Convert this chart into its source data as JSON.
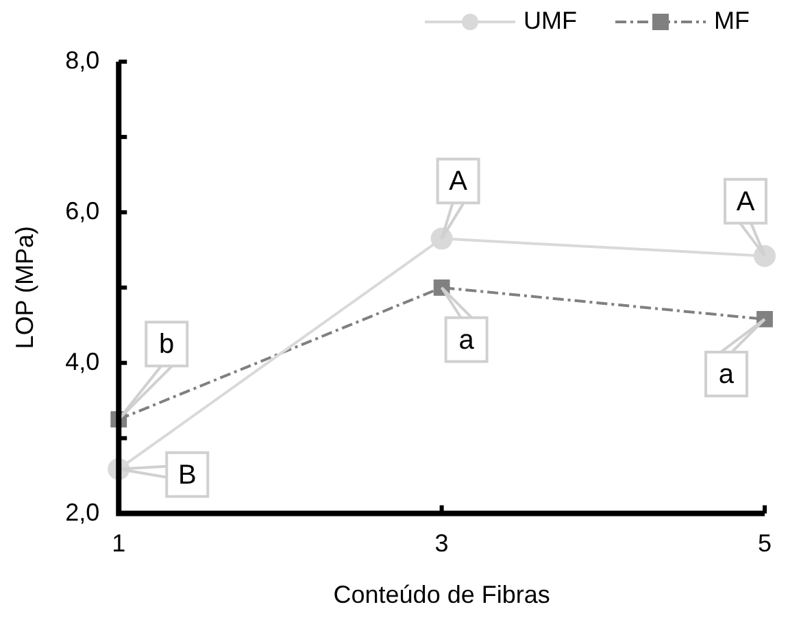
{
  "chart_data": {
    "type": "line",
    "xlabel": "Conteúdo de Fibras",
    "ylabel": "LOP (MPa)",
    "x": [
      1,
      3,
      5
    ],
    "series": [
      {
        "name": "UMF",
        "color": "#d9d9d9",
        "values": [
          2.59,
          5.65,
          5.42
        ],
        "marker": "circle",
        "line_style": "solid"
      },
      {
        "name": "MF",
        "color": "#808080",
        "values": [
          3.25,
          5.0,
          4.58
        ],
        "marker": "square",
        "line_style": "dashdot"
      }
    ],
    "xlim": [
      1,
      5
    ],
    "xticks": [
      1,
      3,
      5
    ],
    "ylim": [
      2,
      8
    ],
    "yticks": [
      {
        "value": 2,
        "label": "2,0"
      },
      {
        "value": 3,
        "label": null
      },
      {
        "value": 4,
        "label": "4,0"
      },
      {
        "value": 5,
        "label": null
      },
      {
        "value": 6,
        "label": "6,0"
      },
      {
        "value": 7,
        "label": null
      },
      {
        "value": 8,
        "label": "8,0"
      }
    ],
    "grid": false,
    "legend": "top right",
    "annotations": [
      {
        "text": "B",
        "x": 1,
        "y": 2.59
      },
      {
        "text": "b",
        "x": 1,
        "y": 3.25
      },
      {
        "text": "A",
        "x": 3,
        "y": 5.65
      },
      {
        "text": "a",
        "x": 3,
        "y": 5.0
      },
      {
        "text": "A",
        "x": 5,
        "y": 5.42
      },
      {
        "text": "a",
        "x": 5,
        "y": 4.58
      }
    ]
  }
}
